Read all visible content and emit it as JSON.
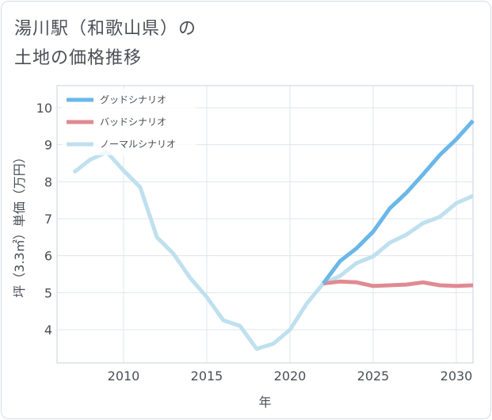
{
  "title_line1": "湯川駅（和歌山県）の",
  "title_line2": "土地の価格推移",
  "chart_data": {
    "type": "line",
    "xlabel": "年",
    "ylabel": "坪（3.3㎡）単価（万円）",
    "xlim": [
      2006,
      2031
    ],
    "ylim": [
      3.1,
      10.6
    ],
    "xticks": [
      2010,
      2015,
      2020,
      2025,
      2030
    ],
    "yticks": [
      4,
      5,
      6,
      7,
      8,
      9,
      10
    ],
    "grid": true,
    "legend_position": "top-left",
    "series": [
      {
        "name": "グッドシナリオ",
        "color": "#6bb7e8",
        "x": [
          2022,
          2023,
          2024,
          2025,
          2026,
          2027,
          2028,
          2029,
          2030,
          2031
        ],
        "values": [
          5.25,
          5.85,
          6.2,
          6.65,
          7.28,
          7.7,
          8.2,
          8.72,
          9.15,
          9.65
        ]
      },
      {
        "name": "バッドシナリオ",
        "color": "#e08a92",
        "x": [
          2022,
          2023,
          2024,
          2025,
          2026,
          2027,
          2028,
          2029,
          2030,
          2031
        ],
        "values": [
          5.25,
          5.3,
          5.28,
          5.18,
          5.2,
          5.22,
          5.28,
          5.2,
          5.18,
          5.2
        ]
      },
      {
        "name": "ノーマルシナリオ",
        "color": "#bfe0ee",
        "x": [
          2007,
          2008,
          2009,
          2010,
          2011,
          2012,
          2013,
          2014,
          2015,
          2016,
          2017,
          2018,
          2019,
          2020,
          2021,
          2022,
          2023,
          2024,
          2025,
          2026,
          2027,
          2028,
          2029,
          2030,
          2031
        ],
        "values": [
          8.25,
          8.6,
          8.8,
          8.3,
          7.85,
          6.5,
          6.05,
          5.4,
          4.88,
          4.25,
          4.1,
          3.48,
          3.62,
          4.0,
          4.7,
          5.25,
          5.45,
          5.8,
          5.98,
          6.35,
          6.57,
          6.88,
          7.05,
          7.42,
          7.62
        ]
      }
    ]
  }
}
